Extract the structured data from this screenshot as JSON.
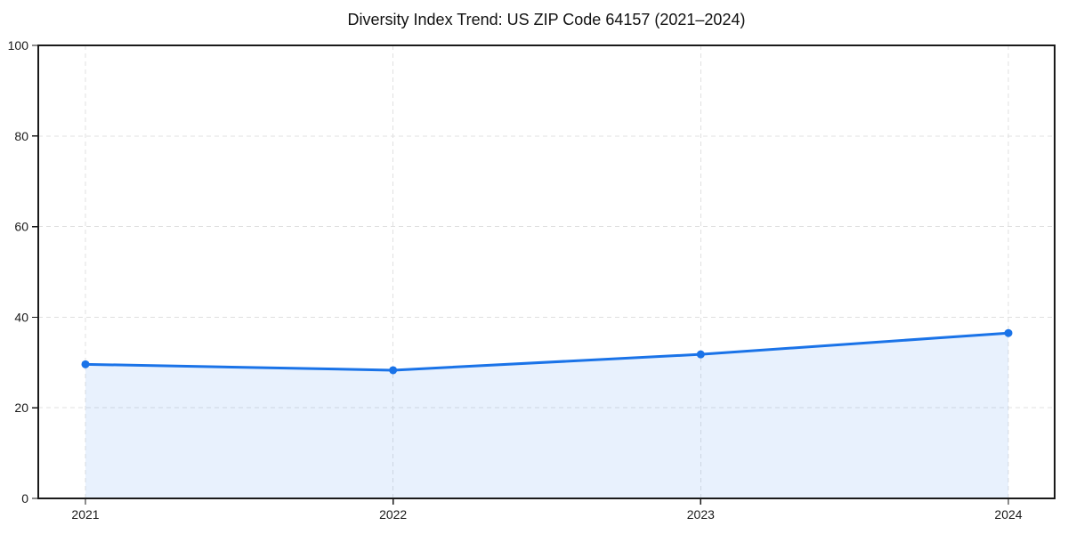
{
  "title": "Diversity Index Trend: US ZIP Code 64157 (2021–2024)",
  "chart_data": {
    "type": "area",
    "title": "Diversity Index Trend: US ZIP Code 64157 (2021–2024)",
    "categories": [
      "2021",
      "2022",
      "2023",
      "2024"
    ],
    "series": [
      {
        "name": "Diversity Index",
        "values": [
          29.6,
          28.3,
          31.8,
          36.5
        ]
      }
    ],
    "xlabel": "",
    "ylabel": "",
    "ylim": [
      0,
      100
    ],
    "yticks": [
      0,
      20,
      40,
      60,
      80,
      100
    ],
    "grid": true,
    "grid_style": "dashed",
    "legend_position": "none",
    "colors": {
      "line": "#1a73e8",
      "marker": "#1a73e8",
      "area_fill": "rgba(26,115,232,0.10)",
      "gridline": "#e0e0e0",
      "frame": "#1a1a1a",
      "tick_text": "#1a1a1a",
      "background": "#ffffff"
    }
  }
}
